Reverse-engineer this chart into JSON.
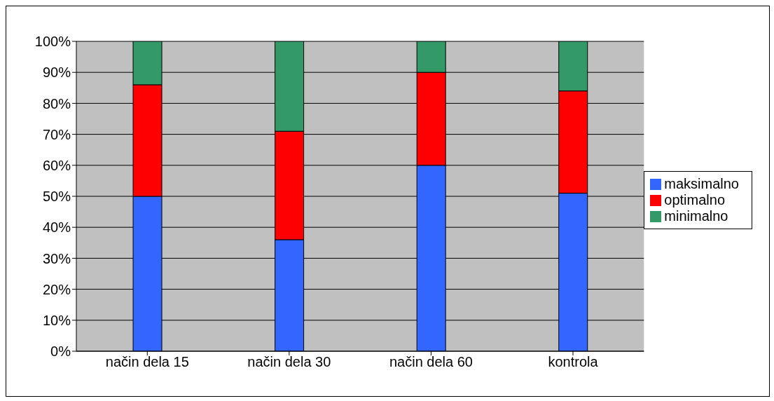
{
  "chart_data": {
    "type": "bar",
    "stacked": true,
    "categories": [
      "način dela 15",
      "način dela 30",
      "način dela 60",
      "kontrola"
    ],
    "series": [
      {
        "name": "maksimalno",
        "color": "#3366ff",
        "values": [
          50,
          36,
          60,
          51
        ]
      },
      {
        "name": "optimalno",
        "color": "#ff0000",
        "values": [
          36,
          35,
          30,
          33
        ]
      },
      {
        "name": "minimalno",
        "color": "#339966",
        "values": [
          14,
          29,
          10,
          16
        ]
      }
    ],
    "ylim": [
      0,
      100
    ],
    "yticks": [
      {
        "value": 0,
        "label": "0%"
      },
      {
        "value": 10,
        "label": "10%"
      },
      {
        "value": 20,
        "label": "20%"
      },
      {
        "value": 30,
        "label": "30%"
      },
      {
        "value": 40,
        "label": "40%"
      },
      {
        "value": 50,
        "label": "50%"
      },
      {
        "value": 60,
        "label": "60%"
      },
      {
        "value": 70,
        "label": "70%"
      },
      {
        "value": 80,
        "label": "80%"
      },
      {
        "value": 90,
        "label": "90%"
      },
      {
        "value": 100,
        "label": "100%"
      }
    ],
    "grid": "y",
    "legend": "right"
  }
}
